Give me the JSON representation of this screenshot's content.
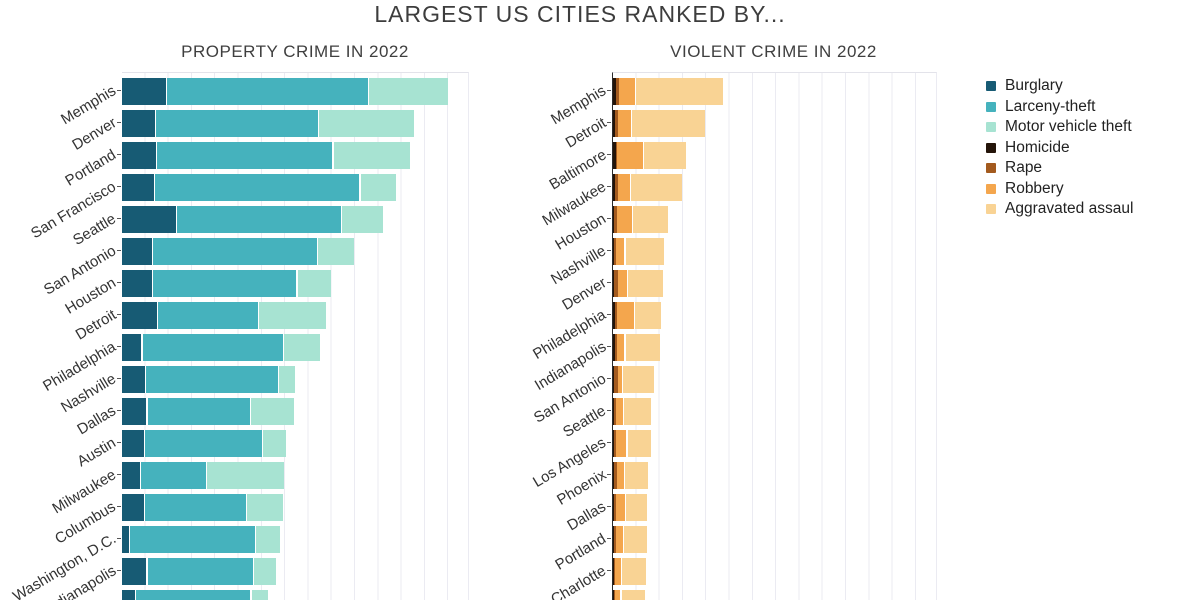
{
  "page_title": "LARGEST US CITIES RANKED BY...",
  "legend": {
    "position": "top-right",
    "items": [
      {
        "label": "Burglary",
        "color": "#175b74"
      },
      {
        "label": "Larceny-theft",
        "color": "#45b2bd"
      },
      {
        "label": "Motor vehicle theft",
        "color": "#a7e3d2"
      },
      {
        "label": "Homicide",
        "color": "#241409"
      },
      {
        "label": "Rape",
        "color": "#a35a1e"
      },
      {
        "label": "Robbery",
        "color": "#f4a64d"
      },
      {
        "label": "Aggravated assaul",
        "color": "#f9d394"
      }
    ]
  },
  "chart_data": [
    {
      "type": "bar",
      "orientation": "horizontal",
      "stacked": true,
      "grid": true,
      "title": "PROPERTY CRIME IN 2022",
      "xlabel": "",
      "ylabel": "",
      "xlim_estimated": [
        0,
        7400
      ],
      "gridline_step_estimated": 500,
      "note": "x-axis tick labels and bottom rows are cut off by the image edge; last category label not visible",
      "categories": [
        "Memphis",
        "Denver",
        "Portland",
        "San Francisco",
        "Seattle",
        "San Antonio",
        "Houston",
        "Detroit",
        "Philadelphia",
        "Nashville",
        "Dallas",
        "Austin",
        "Milwaukee",
        "Columbus",
        "Washington, D.C.",
        "Indianapolis",
        ""
      ],
      "series": [
        {
          "name": "Burglary",
          "color": "#175b74",
          "values": [
            970,
            730,
            750,
            710,
            1190,
            670,
            670,
            780,
            440,
            520,
            550,
            490,
            410,
            490,
            180,
            550,
            300
          ]
        },
        {
          "name": "Larceny-theft",
          "color": "#45b2bd",
          "values": [
            4340,
            3500,
            3790,
            4410,
            3530,
            3530,
            3100,
            2160,
            3030,
            2850,
            2220,
            2530,
            1420,
            2190,
            2700,
            2290,
            2480
          ]
        },
        {
          "name": "Motor vehicle theft",
          "color": "#a7e3d2",
          "values": [
            1690,
            2040,
            1650,
            750,
            890,
            770,
            720,
            1440,
            770,
            340,
            930,
            490,
            1640,
            780,
            520,
            460,
            360
          ]
        }
      ]
    },
    {
      "type": "bar",
      "orientation": "horizontal",
      "stacked": true,
      "grid": true,
      "title": "VIOLENT CRIME IN 2022",
      "xlabel": "",
      "ylabel": "",
      "xlim_estimated": [
        0,
        6950
      ],
      "gridline_step_estimated": 500,
      "note": "x-axis tick labels and bottom rows are cut off by the image edge; last category label not visible",
      "categories": [
        "Memphis",
        "Detroit",
        "Baltimore",
        "Milwaukee",
        "Houston",
        "Nashville",
        "Denver",
        "Philadelphia",
        "Indianapolis",
        "San Antonio",
        "Seattle",
        "Los Angeles",
        "Phoenix",
        "Dallas",
        "Portland",
        "Charlotte",
        ""
      ],
      "series": [
        {
          "name": "Homicide",
          "color": "#241409",
          "values": [
            60,
            50,
            60,
            45,
            30,
            30,
            30,
            45,
            50,
            30,
            15,
            15,
            30,
            30,
            15,
            15,
            15
          ]
        },
        {
          "name": "Rape",
          "color": "#a35a1e",
          "values": [
            65,
            65,
            30,
            55,
            55,
            45,
            80,
            45,
            30,
            85,
            45,
            45,
            55,
            45,
            45,
            30,
            30
          ]
        },
        {
          "name": "Robbery",
          "color": "#f4a64d",
          "values": [
            375,
            295,
            585,
            285,
            350,
            195,
            215,
            385,
            190,
            100,
            170,
            255,
            170,
            210,
            185,
            145,
            140
          ]
        },
        {
          "name": "Aggravated assault",
          "color": "#f9d394",
          "values": [
            1870,
            1570,
            895,
            1095,
            735,
            815,
            745,
            545,
            740,
            655,
            585,
            490,
            490,
            455,
            490,
            515,
            500
          ]
        }
      ]
    }
  ]
}
